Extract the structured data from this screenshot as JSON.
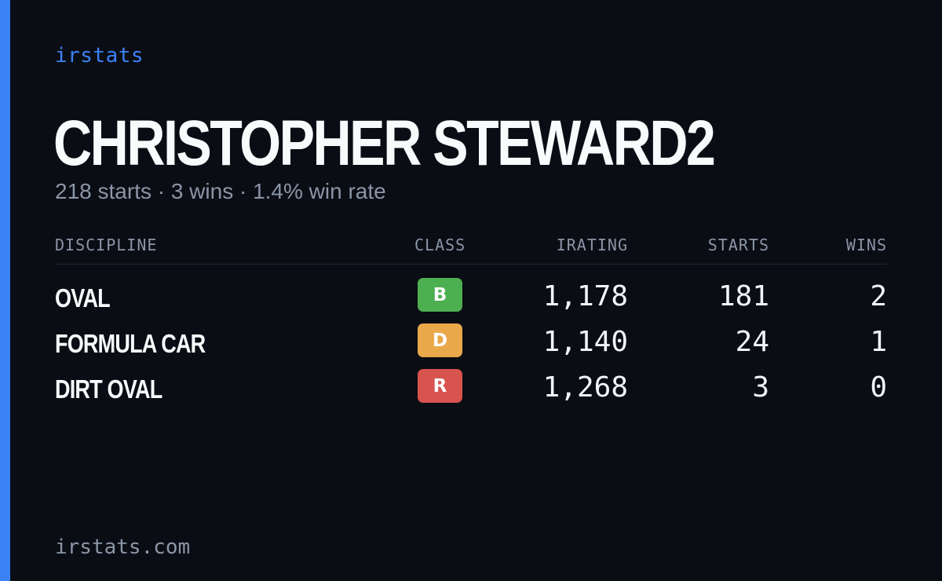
{
  "brand": "irstats",
  "driver": {
    "name": "CHRISTOPHER STEWARD2",
    "summary": "218 starts · 3 wins · 1.4% win rate"
  },
  "table": {
    "headers": {
      "discipline": "DISCIPLINE",
      "class": "CLASS",
      "irating": "IRATING",
      "starts": "STARTS",
      "wins": "WINS"
    },
    "rows": [
      {
        "discipline": "OVAL",
        "class": "B",
        "class_color": "#4caf50",
        "irating": "1,178",
        "starts": "181",
        "wins": "2"
      },
      {
        "discipline": "FORMULA CAR",
        "class": "D",
        "class_color": "#e9a94b",
        "irating": "1,140",
        "starts": "24",
        "wins": "1"
      },
      {
        "discipline": "DIRT OVAL",
        "class": "R",
        "class_color": "#d9534f",
        "irating": "1,268",
        "starts": "3",
        "wins": "0"
      }
    ]
  },
  "footer": "irstats.com",
  "colors": {
    "accent": "#3b82f6",
    "background": "#0a0d14"
  }
}
